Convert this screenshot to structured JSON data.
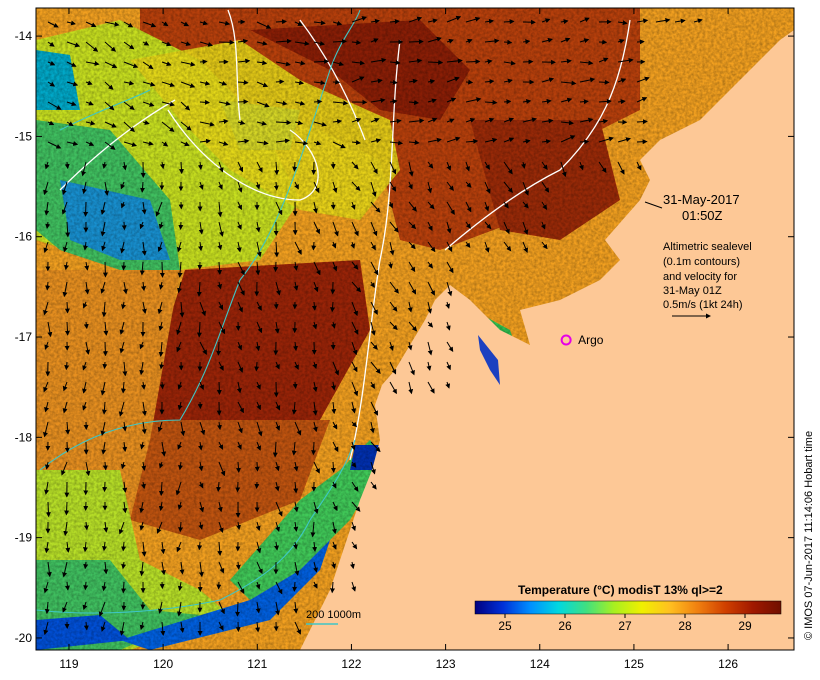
{
  "map": {
    "lon_range": [
      118.65,
      126.7
    ],
    "lat_range": [
      -20.12,
      -13.72
    ],
    "lon_ticks": [
      119,
      120,
      121,
      122,
      123,
      124,
      125,
      126
    ],
    "lat_ticks": [
      -14,
      -15,
      -16,
      -17,
      -18,
      -19,
      -20
    ],
    "colors": {
      "land": "#fdc896",
      "frame": "#000000",
      "contour": "#ffffff",
      "isobath": "#3ec6c6",
      "argo": "#e600e6"
    }
  },
  "annotations": {
    "date": "31-May-2017",
    "time": "01:50Z",
    "info_lines": [
      "Altimetric sealevel",
      "(0.1m contours)",
      "and velocity for",
      "31-May 01Z",
      "0.5m/s (1kt 24h)"
    ]
  },
  "argo": {
    "label": "Argo",
    "lon": 124.28,
    "lat": -17.03
  },
  "isobath_legend": {
    "label": "200  1000m"
  },
  "colorbar": {
    "title": "Temperature (°C) modisT 13% ql>=2",
    "min": 24.5,
    "max": 29.6,
    "ticks": [
      "25",
      "26",
      "27",
      "28",
      "29"
    ],
    "colors": [
      "#000080",
      "#0030d8",
      "#0090ff",
      "#00d8e0",
      "#40e080",
      "#a8f020",
      "#f0f000",
      "#ffc020",
      "#f08010",
      "#d04000",
      "#a01800",
      "#701000"
    ]
  },
  "credit": "© IMOS 07-Jun-2017 11:14:06 Hobart time"
}
